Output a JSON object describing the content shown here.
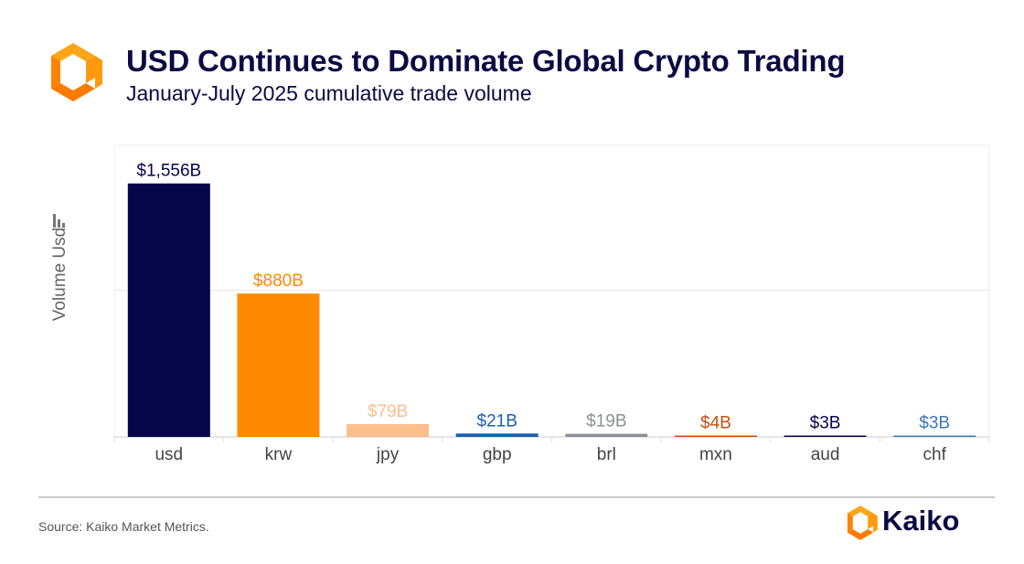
{
  "header": {
    "title": "USD Continues to Dominate Global Crypto Trading",
    "subtitle": "January-July 2025 cumulative trade volume"
  },
  "footer": {
    "source": "Source: Kaiko Market Metrics.",
    "brand": "Kaiko"
  },
  "colors": {
    "navy": "#0b0b44",
    "orange": "#ff8c00"
  },
  "chart_data": {
    "type": "bar",
    "title": "USD Continues to Dominate Global Crypto Trading",
    "subtitle": "January-July 2025 cumulative trade volume",
    "xlabel": "",
    "ylabel": "Volume Usd",
    "ylim": [
      0,
      1790
    ],
    "grid": true,
    "gridlines": [
      900
    ],
    "categories": [
      "usd",
      "krw",
      "jpy",
      "gbp",
      "brl",
      "mxn",
      "aud",
      "chf"
    ],
    "values": [
      1556,
      880,
      79,
      21,
      19,
      4,
      3,
      3
    ],
    "value_labels": [
      "$1,556B",
      "$880B",
      "$79B",
      "$21B",
      "$19B",
      "$4B",
      "$3B",
      "$3B"
    ],
    "bar_colors": [
      "#05054a",
      "#ff8a00",
      "#fcbf8c",
      "#1c5fb4",
      "#8c8f96",
      "#c4500e",
      "#05054a",
      "#3b78b8"
    ],
    "label_colors": [
      "#05054a",
      "#ff8a00",
      "#fcbf8c",
      "#1c5fb4",
      "#8c8f96",
      "#c4500e",
      "#05054a",
      "#3b78b8"
    ],
    "units": "USD billions"
  }
}
